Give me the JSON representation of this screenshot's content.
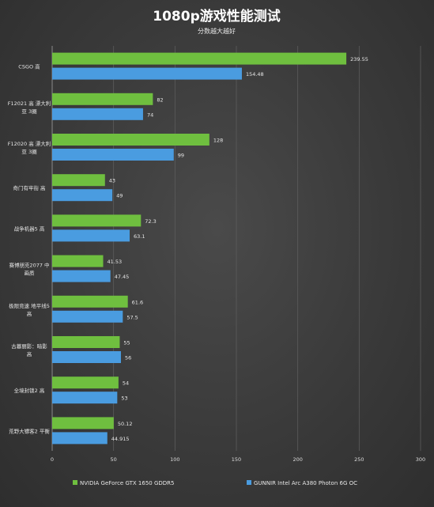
{
  "chart_data": {
    "type": "bar",
    "orientation": "horizontal",
    "title": "1080p游戏性能测试",
    "subtitle": "分数越大越好",
    "categories": [
      [
        "CSGO 高"
      ],
      [
        "F12021 高 漂大利",
        "亚 3圈"
      ],
      [
        "F12020 高 漂大利",
        "亚 3圈"
      ],
      [
        "奇门有牢街 高"
      ],
      [
        "战争机器5 高"
      ],
      [
        "赛博朋克2077 中",
        "画质"
      ],
      [
        "极限竞速 地平线5",
        "高"
      ],
      [
        "古墓丽影：暗影",
        "高"
      ],
      [
        "全境封锁2 高"
      ],
      [
        "荒野大镖客2 平衡"
      ]
    ],
    "series": [
      {
        "name": "NVIDIA GeForce GTX 1650  GDDR5",
        "color": "#6fbf3f",
        "values": [
          239.55,
          82,
          128,
          43,
          72.3,
          41.53,
          61.6,
          55,
          54,
          50.12
        ],
        "labels": [
          "239.55",
          "82",
          "128",
          "43",
          "72.3",
          "41.53",
          "61.6",
          "55",
          "54",
          "50.12"
        ]
      },
      {
        "name": "GUNNIR Intel Arc A380 Photon 6G OC",
        "color": "#4a9ce0",
        "values": [
          154.48,
          74,
          99,
          49,
          63.1,
          47.45,
          57.5,
          56,
          53,
          44.915
        ],
        "labels": [
          "154.48",
          "74",
          "99",
          "49",
          "63.1",
          "47.45",
          "57.5",
          "56",
          "53",
          "44.915"
        ]
      }
    ],
    "xlim": [
      0,
      300
    ],
    "xticks": [
      0,
      50,
      100,
      150,
      200,
      250,
      300
    ],
    "grid": true,
    "legend": "bottom"
  }
}
